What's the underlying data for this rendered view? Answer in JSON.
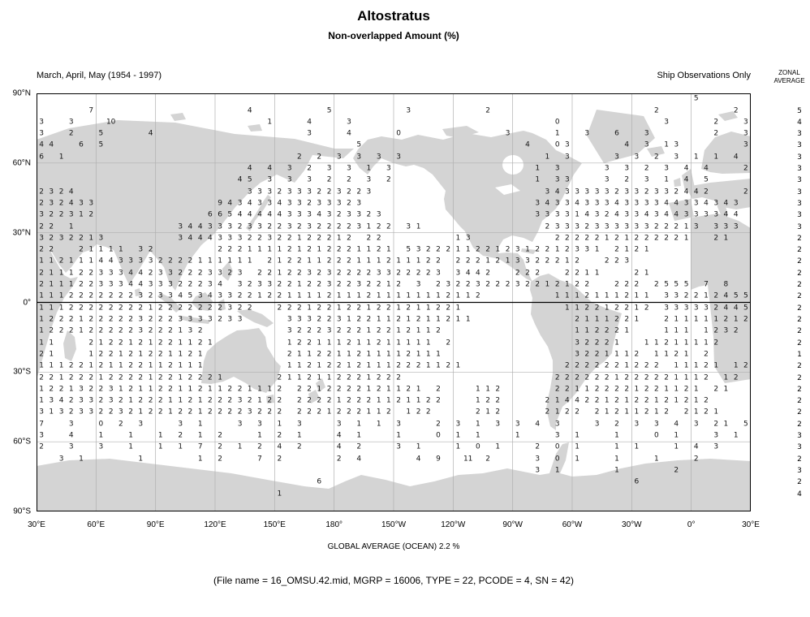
{
  "title": "Altostratus",
  "subtitle": "Non-overlapped Amount (%)",
  "period_label": "March, April, May (1954 - 1997)",
  "source_label": "Ship Observations Only",
  "zonal_header": {
    "line1": "ZONAL",
    "line2": "AVERAGE"
  },
  "global_average_text": "GLOBAL AVERAGE (OCEAN)  2.2 %",
  "file_caption": "(File name = 16_OMSU.42.mid, MGRP = 16006, TYPE = 22, PCODE = 4, SN = 42)",
  "colors": {
    "land": "#d4d4d4",
    "grid": "#b0b0b0",
    "frame": "#000000",
    "number": "#141414"
  },
  "chart_data": {
    "type": "heatmap",
    "title": "Altostratus Non-overlapped Amount (%)",
    "season": "March, April, May (1954 - 1997)",
    "source": "Ship Observations Only",
    "units": "%",
    "global_average_ocean_pct": 2.2,
    "lat_ticks": [
      "90°N",
      "60°N",
      "30°N",
      "0°",
      "30°S",
      "60°S",
      "90°S"
    ],
    "lon_ticks": [
      "30°E",
      "60°E",
      "90°E",
      "120°E",
      "150°E",
      "180°",
      "150°W",
      "120°W",
      "90°W",
      "60°W",
      "30°W",
      "0°",
      "30°E"
    ],
    "lon_start_deg_east": 30,
    "cell_size_deg": 5,
    "grid_cols": 72,
    "grid_rows_count": 36,
    "value_encoding": {
      "a": "10",
      "b": "11"
    },
    "zonal_average": [
      5,
      4,
      3,
      3,
      3,
      3,
      3,
      3,
      3,
      3,
      3,
      2,
      2,
      2,
      2,
      2,
      2,
      2,
      2,
      2,
      2,
      1,
      2,
      2,
      2,
      2,
      2,
      2,
      3,
      3,
      2,
      3,
      2,
      4
    ],
    "grid_rows": [
      {
        "r": 0,
        "segs": [
          [
            66,
            "5"
          ]
        ]
      },
      {
        "r": 1,
        "segs": [
          [
            5,
            "7"
          ],
          [
            21,
            "4"
          ],
          [
            29,
            "5"
          ],
          [
            37,
            "3"
          ],
          [
            45,
            "2"
          ],
          [
            62,
            "2"
          ],
          [
            70,
            "2"
          ]
        ]
      },
      {
        "r": 2,
        "segs": [
          [
            0,
            "3"
          ],
          [
            3,
            "3"
          ],
          [
            7,
            "a"
          ],
          [
            23,
            "1"
          ],
          [
            27,
            "4"
          ],
          [
            31,
            "3"
          ],
          [
            52,
            "0"
          ],
          [
            63,
            "3"
          ],
          [
            68,
            "2"
          ],
          [
            71,
            "3"
          ]
        ]
      },
      {
        "r": 3,
        "segs": [
          [
            0,
            "3"
          ],
          [
            3,
            "2"
          ],
          [
            6,
            "5"
          ],
          [
            11,
            "4"
          ],
          [
            27,
            "3"
          ],
          [
            31,
            "4"
          ],
          [
            36,
            "0"
          ],
          [
            47,
            "3"
          ],
          [
            52,
            "1"
          ],
          [
            55,
            "3"
          ],
          [
            58,
            "6"
          ],
          [
            61,
            "3"
          ],
          [
            68,
            "2"
          ],
          [
            71,
            "3"
          ]
        ]
      },
      {
        "r": 4,
        "segs": [
          [
            0,
            "44"
          ],
          [
            4,
            "6"
          ],
          [
            6,
            "5"
          ],
          [
            32,
            "5"
          ],
          [
            49,
            "4"
          ],
          [
            52,
            "03"
          ],
          [
            59,
            "4"
          ],
          [
            61,
            "3"
          ],
          [
            63,
            "13"
          ],
          [
            71,
            "3"
          ]
        ]
      },
      {
        "r": 5,
        "segs": [
          [
            0,
            "6"
          ],
          [
            2,
            "1"
          ],
          [
            26,
            "2 2 3 3 3 3"
          ],
          [
            51,
            "1 3"
          ],
          [
            58,
            "3 3 2 3 1"
          ],
          [
            68,
            "1 4"
          ]
        ]
      },
      {
        "r": 6,
        "segs": [
          [
            21,
            "4 4 3 2 3 3 1 3"
          ],
          [
            50,
            "1 3"
          ],
          [
            57,
            "3 3 2 3 4 4"
          ],
          [
            71,
            "2"
          ]
        ]
      },
      {
        "r": 7,
        "segs": [
          [
            20,
            "45 3 3 3 2 2 3 2"
          ],
          [
            50,
            "1 33"
          ],
          [
            57,
            "3 2 3 1 4 5"
          ]
        ]
      },
      {
        "r": 8,
        "segs": [
          [
            0,
            "2324"
          ],
          [
            21,
            "3332333223223"
          ],
          [
            51,
            "34333332332332442"
          ],
          [
            71,
            "2"
          ]
        ]
      },
      {
        "r": 9,
        "segs": [
          [
            0,
            "232433"
          ],
          [
            18,
            "943433433233323"
          ],
          [
            50,
            "343343334333344334343"
          ]
        ]
      },
      {
        "r": 10,
        "segs": [
          [
            0,
            "322312"
          ],
          [
            17,
            "665444443334323323"
          ],
          [
            50,
            "333314324334344333344"
          ]
        ]
      },
      {
        "r": 11,
        "segs": [
          [
            0,
            "22 1"
          ],
          [
            14,
            "3443332332232322223122"
          ],
          [
            37,
            "31"
          ],
          [
            51,
            "2333233333322213"
          ],
          [
            68,
            "333"
          ]
        ]
      },
      {
        "r": 12,
        "segs": [
          [
            0,
            "3232213"
          ],
          [
            14,
            "344433322322122212"
          ],
          [
            33,
            "22"
          ],
          [
            42,
            "13"
          ],
          [
            52,
            "22222121222221"
          ],
          [
            68,
            "21"
          ]
        ]
      },
      {
        "r": 13,
        "segs": [
          [
            0,
            "22"
          ],
          [
            4,
            "21111"
          ],
          [
            10,
            "32"
          ],
          [
            18,
            "222111121212221121"
          ],
          [
            37,
            "53222112212312212331"
          ],
          [
            58,
            "2121"
          ]
        ]
      },
      {
        "r": 14,
        "segs": [
          [
            0,
            "112111"
          ],
          [
            6,
            "4433332222111111"
          ],
          [
            23,
            "212211222111211122"
          ],
          [
            42,
            "2221213322212"
          ],
          [
            57,
            "223"
          ]
        ]
      },
      {
        "r": 15,
        "segs": [
          [
            0,
            "211122333442332223323"
          ],
          [
            22,
            "2212232322223322223"
          ],
          [
            42,
            "3442"
          ],
          [
            48,
            "222"
          ],
          [
            53,
            "2211"
          ],
          [
            60,
            "21"
          ]
        ]
      },
      {
        "r": 16,
        "segs": [
          [
            0,
            "2111223334433322234"
          ],
          [
            20,
            "32332212232232212 3"
          ],
          [
            40,
            "2322322232212122"
          ],
          [
            58,
            "222"
          ],
          [
            62,
            "2555 7 8"
          ]
        ]
      },
      {
        "r": 17,
        "segs": [
          [
            0,
            "11122222223233453433"
          ],
          [
            20,
            "2212211112111211111112112"
          ],
          [
            52,
            "1112111211"
          ],
          [
            63,
            "332212455"
          ]
        ]
      },
      {
        "r": 18,
        "segs": [
          [
            0,
            "1112222222212222222322"
          ],
          [
            24,
            "2221221221221211221"
          ],
          [
            53,
            "112212212"
          ],
          [
            63,
            "333332445"
          ]
        ]
      },
      {
        "r": 19,
        "segs": [
          [
            0,
            "122212222232223333233"
          ],
          [
            25,
            "3332231221121211211"
          ],
          [
            54,
            "2111221"
          ],
          [
            63,
            "211111212"
          ]
        ]
      },
      {
        "r": 20,
        "segs": [
          [
            0,
            "12221222223222132"
          ],
          [
            25,
            "3222322212212112"
          ],
          [
            54,
            "112221"
          ],
          [
            63,
            "111 1232"
          ]
        ]
      },
      {
        "r": 21,
        "segs": [
          [
            0,
            "11"
          ],
          [
            5,
            "2122121221121"
          ],
          [
            25,
            "122111211211111 2"
          ],
          [
            54,
            "32221"
          ],
          [
            61,
            "11211112"
          ]
        ]
      },
      {
        "r": 22,
        "segs": [
          [
            0,
            "21"
          ],
          [
            5,
            "122121221121"
          ],
          [
            25,
            "2112211211112111"
          ],
          [
            54,
            "3221112"
          ],
          [
            62,
            "1121 2"
          ]
        ]
      },
      {
        "r": 23,
        "segs": [
          [
            0,
            "11122121122112111"
          ],
          [
            25,
            "112122121112221121"
          ],
          [
            53,
            "2222221222"
          ],
          [
            64,
            "11121 12"
          ]
        ]
      },
      {
        "r": 24,
        "segs": [
          [
            0,
            "2212221222212212221"
          ],
          [
            24,
            "2112112221222"
          ],
          [
            52,
            "2222221222221112"
          ],
          [
            69,
            "12"
          ]
        ]
      },
      {
        "r": 25,
        "segs": [
          [
            0,
            "1221322312112211211221112"
          ],
          [
            26,
            "2212222121121 2"
          ],
          [
            44,
            "112"
          ],
          [
            52,
            "221122221221121 21"
          ]
        ]
      },
      {
        "r": 26,
        "segs": [
          [
            0,
            "1342332321222112122232122"
          ],
          [
            26,
            "222212221121122"
          ],
          [
            44,
            "122"
          ],
          [
            51,
            "21442212122121212"
          ]
        ]
      },
      {
        "r": 27,
        "segs": [
          [
            0,
            "3132332232122122122223222"
          ],
          [
            26,
            "2221222112 122"
          ],
          [
            44,
            "212"
          ],
          [
            51,
            "2122 21211212 2121"
          ]
        ]
      },
      {
        "r": 28,
        "segs": [
          [
            0,
            "7  3  0"
          ],
          [
            8,
            "2 3"
          ],
          [
            14,
            "3 1"
          ],
          [
            20,
            "3 3 1 3"
          ],
          [
            30,
            "3 1 1 3"
          ],
          [
            40,
            "2 3 1 3"
          ],
          [
            48,
            "3 4 3"
          ],
          [
            56,
            "3 2 3"
          ],
          [
            62,
            "3 4 3 2"
          ],
          [
            69,
            "1 5"
          ]
        ]
      },
      {
        "r": 29,
        "segs": [
          [
            0,
            "3  4  1  1"
          ],
          [
            12,
            "1 2 1"
          ],
          [
            18,
            "2"
          ],
          [
            22,
            "1 2 1"
          ],
          [
            30,
            "4 1"
          ],
          [
            36,
            "1"
          ],
          [
            40,
            "0 1 1"
          ],
          [
            48,
            "1"
          ],
          [
            52,
            "3 1"
          ],
          [
            58,
            "1"
          ],
          [
            62,
            "0 1"
          ],
          [
            68,
            "3 1"
          ]
        ]
      },
      {
        "r": 30,
        "segs": [
          [
            0,
            "2  3  3  1  1"
          ],
          [
            14,
            "1 7 2"
          ],
          [
            20,
            "1 2 4 2"
          ],
          [
            30,
            "4 2"
          ],
          [
            36,
            "3 1"
          ],
          [
            42,
            "1 0 1"
          ],
          [
            50,
            "2 0 1"
          ],
          [
            58,
            "1 1"
          ],
          [
            64,
            "1 4 3"
          ]
        ]
      },
      {
        "r": 31,
        "segs": [
          [
            2,
            "3 1"
          ],
          [
            10,
            "1"
          ],
          [
            16,
            "1 2"
          ],
          [
            22,
            "7 2"
          ],
          [
            30,
            "2 4"
          ],
          [
            38,
            "4 9"
          ],
          [
            43,
            "b 2"
          ],
          [
            50,
            "3 0 1"
          ],
          [
            58,
            "1"
          ],
          [
            62,
            "1"
          ],
          [
            66,
            "2"
          ]
        ]
      },
      {
        "r": 32,
        "segs": [
          [
            50,
            "3 1"
          ],
          [
            58,
            "1"
          ],
          [
            64,
            "2"
          ]
        ]
      },
      {
        "r": 33,
        "segs": [
          [
            28,
            "6"
          ],
          [
            60,
            "6"
          ]
        ]
      },
      {
        "r": 34,
        "segs": [
          [
            24,
            "1"
          ]
        ]
      }
    ]
  }
}
